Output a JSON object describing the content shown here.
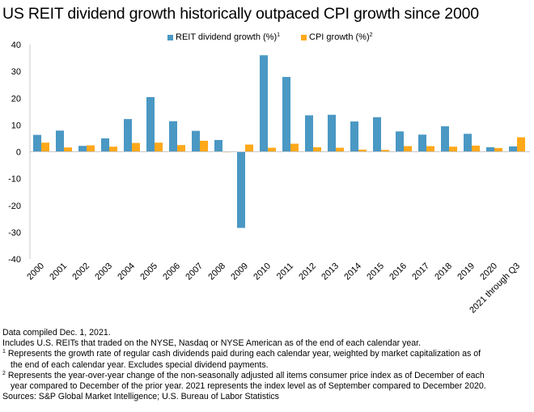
{
  "chart_data": {
    "type": "bar",
    "title": "US REIT dividend growth historically outpaced CPI growth since 2000",
    "xlabel": "",
    "ylabel": "",
    "ylim": [
      -40,
      40
    ],
    "yticks": [
      40,
      30,
      20,
      10,
      0,
      -10,
      -20,
      -30,
      -40
    ],
    "grid": false,
    "legend_position": "top-center",
    "categories": [
      "2000",
      "2001",
      "2002",
      "2003",
      "2004",
      "2005",
      "2006",
      "2007",
      "2008",
      "2009",
      "2010",
      "2011",
      "2012",
      "2013",
      "2014",
      "2015",
      "2016",
      "2017",
      "2018",
      "2019",
      "2020",
      "2021 through Q3"
    ],
    "series": [
      {
        "name": "REIT dividend growth (%)¹",
        "color": "#4A98C4",
        "values": [
          6.3,
          7.9,
          2.2,
          5.0,
          12.2,
          20.4,
          11.4,
          7.8,
          4.4,
          -28.4,
          36.0,
          27.9,
          13.6,
          13.8,
          11.3,
          12.9,
          7.6,
          6.4,
          9.5,
          6.7,
          1.7,
          2.0
        ]
      },
      {
        "name": "CPI growth (%)²",
        "color": "#FFA81A",
        "values": [
          3.4,
          1.6,
          2.4,
          1.9,
          3.3,
          3.4,
          2.5,
          4.1,
          0.1,
          2.7,
          1.5,
          3.0,
          1.7,
          1.5,
          0.8,
          0.7,
          2.1,
          2.1,
          1.9,
          2.3,
          1.4,
          5.4
        ]
      }
    ]
  },
  "legend": {
    "reit_label": "REIT dividend growth (%)",
    "reit_sup": "1",
    "cpi_label": "CPI growth (%)",
    "cpi_sup": "2"
  },
  "notes": {
    "line1": "Data compiled Dec. 1, 2021.",
    "line2": "Includes U.S. REITs that traded on the NYSE, Nasdaq or NYSE American as of the end of each calendar year.",
    "fn1_marker": "1",
    "fn1_line1": "Represents the growth rate of regular cash dividends paid during each calendar year, weighted by market capitalization as of",
    "fn1_line2": "the end of each calendar year. Excludes special dividend payments.",
    "fn2_marker": "2",
    "fn2_line1": "Represents the year-over-year change of the non-seasonally adjusted all items consumer price index as of December of each",
    "fn2_line2": "year compared to December of the prior year. 2021 represents the index level as of September compared to December 2020.",
    "sources": "Sources: S&P Global Market Intelligence; U.S. Bureau of Labor Statistics"
  }
}
